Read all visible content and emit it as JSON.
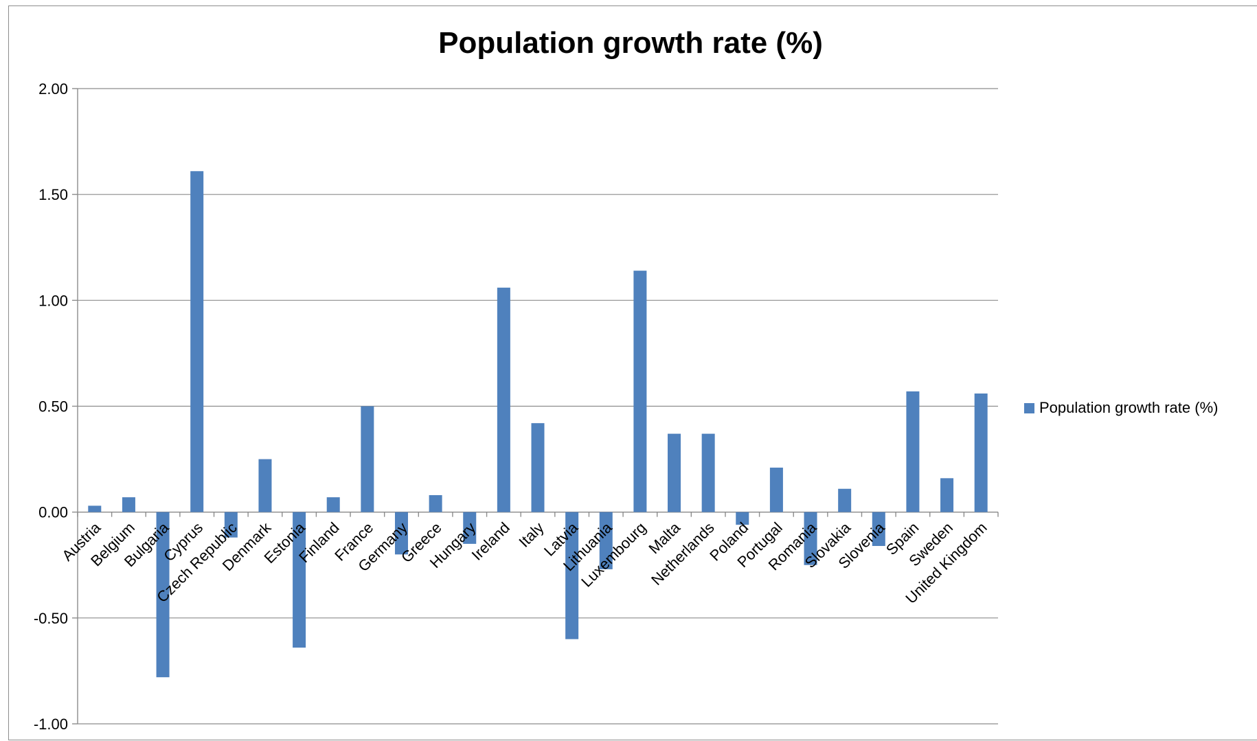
{
  "chart_data": {
    "type": "bar",
    "title": "Population growth rate (%)",
    "xlabel": "",
    "ylabel": "",
    "ylim": [
      -1.0,
      2.0
    ],
    "yticks": [
      2.0,
      1.5,
      1.0,
      0.5,
      0.0,
      -0.5,
      -1.0
    ],
    "ytick_labels": [
      "2.00",
      "1.50",
      "1.00",
      "0.50",
      "0.00",
      "-0.50",
      "-1.00"
    ],
    "grid": true,
    "legend_position": "right",
    "categories": [
      "Austria",
      "Belgium",
      "Bulgaria",
      "Cyprus",
      "Czech Republic",
      "Denmark",
      "Estonia",
      "Finland",
      "France",
      "Germany",
      "Greece",
      "Hungary",
      "Ireland",
      "Italy",
      "Latvia",
      "Lithuania",
      "Luxembourg",
      "Malta",
      "Netherlands",
      "Poland",
      "Portugal",
      "Romania",
      "Slovakia",
      "Slovenia",
      "Spain",
      "Sweden",
      "United Kingdom"
    ],
    "series": [
      {
        "name": "Population growth rate (%)",
        "color": "#4f81bd",
        "values": [
          0.03,
          0.07,
          -0.78,
          1.61,
          -0.12,
          0.25,
          -0.64,
          0.07,
          0.5,
          -0.2,
          0.08,
          -0.15,
          1.06,
          0.42,
          -0.6,
          -0.27,
          1.14,
          0.37,
          0.37,
          -0.06,
          0.21,
          -0.25,
          0.11,
          -0.16,
          0.57,
          0.16,
          0.56
        ]
      }
    ]
  }
}
